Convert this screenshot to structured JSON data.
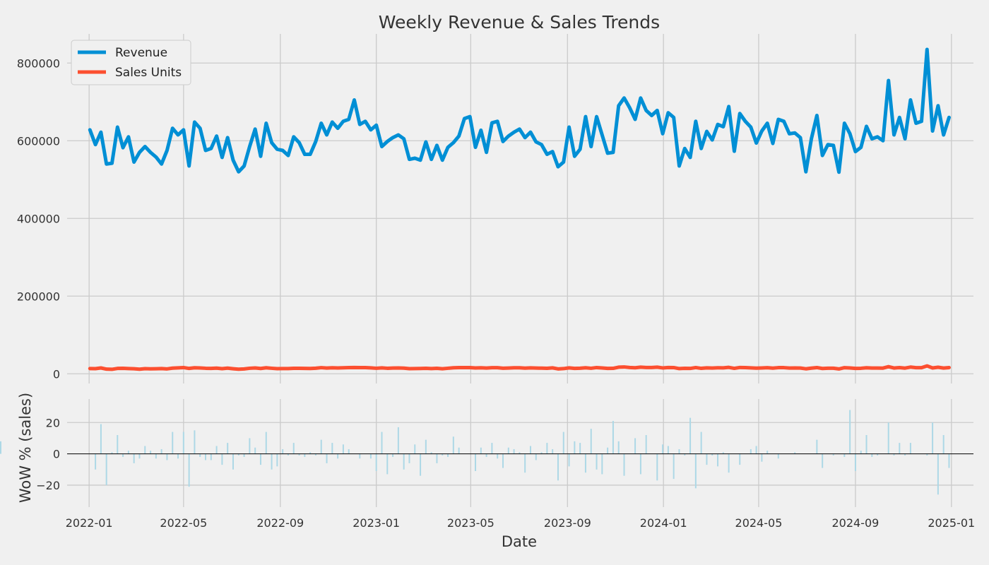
{
  "chart_data": [
    {
      "type": "line",
      "title": "Weekly Revenue & Sales Trends",
      "xlabel": "",
      "ylabel": "",
      "x_range": [
        "2021-12-04",
        "2025-01-29"
      ],
      "ylim": [
        -25000,
        875000
      ],
      "x_ticks": [
        "2022-01",
        "2022-05",
        "2022-09",
        "2023-01",
        "2023-05",
        "2023-09",
        "2024-01",
        "2024-05",
        "2024-09",
        "2025-01"
      ],
      "y_ticks": [
        0,
        200000,
        400000,
        600000,
        800000
      ],
      "grid": true,
      "legend_position": "top-left",
      "x": [
        "2022-01-02",
        "2022-01-09",
        "2022-01-16",
        "2022-01-23",
        "2022-01-30",
        "2022-02-06",
        "2022-02-13",
        "2022-02-20",
        "2022-02-27",
        "2022-03-06",
        "2022-03-13",
        "2022-03-20",
        "2022-03-27",
        "2022-04-03",
        "2022-04-10",
        "2022-04-17",
        "2022-04-24",
        "2022-05-01",
        "2022-05-08",
        "2022-05-15",
        "2022-05-22",
        "2022-05-29",
        "2022-06-05",
        "2022-06-12",
        "2022-06-19",
        "2022-06-26",
        "2022-07-03",
        "2022-07-10",
        "2022-07-17",
        "2022-07-24",
        "2022-07-31",
        "2022-08-07",
        "2022-08-14",
        "2022-08-21",
        "2022-08-28",
        "2022-09-04",
        "2022-09-11",
        "2022-09-18",
        "2022-09-25",
        "2022-10-02",
        "2022-10-09",
        "2022-10-16",
        "2022-10-23",
        "2022-10-30",
        "2022-11-06",
        "2022-11-13",
        "2022-11-20",
        "2022-11-27",
        "2022-12-04",
        "2022-12-11",
        "2022-12-18",
        "2022-12-25",
        "2023-01-01",
        "2023-01-08",
        "2023-01-15",
        "2023-01-22",
        "2023-01-29",
        "2023-02-05",
        "2023-02-12",
        "2023-02-19",
        "2023-02-26",
        "2023-03-05",
        "2023-03-12",
        "2023-03-19",
        "2023-03-26",
        "2023-04-02",
        "2023-04-09",
        "2023-04-16",
        "2023-04-23",
        "2023-04-30",
        "2023-05-07",
        "2023-05-14",
        "2023-05-21",
        "2023-05-28",
        "2023-06-04",
        "2023-06-11",
        "2023-06-18",
        "2023-06-25",
        "2023-07-02",
        "2023-07-09",
        "2023-07-16",
        "2023-07-23",
        "2023-07-30",
        "2023-08-06",
        "2023-08-13",
        "2023-08-20",
        "2023-08-27",
        "2023-09-03",
        "2023-09-10",
        "2023-09-17",
        "2023-09-24",
        "2023-10-01",
        "2023-10-08",
        "2023-10-15",
        "2023-10-22",
        "2023-10-29",
        "2023-11-05",
        "2023-11-12",
        "2023-11-19",
        "2023-11-26",
        "2023-12-03",
        "2023-12-10",
        "2023-12-17",
        "2023-12-24",
        "2023-12-31",
        "2024-01-07",
        "2024-01-14",
        "2024-01-21",
        "2024-01-28",
        "2024-02-04",
        "2024-02-11",
        "2024-02-18",
        "2024-02-25",
        "2024-03-03",
        "2024-03-10",
        "2024-03-17",
        "2024-03-24",
        "2024-03-31",
        "2024-04-07",
        "2024-04-14",
        "2024-04-21",
        "2024-04-28",
        "2024-05-05",
        "2024-05-12",
        "2024-05-19",
        "2024-05-26",
        "2024-06-02",
        "2024-06-09",
        "2024-06-16",
        "2024-06-23",
        "2024-06-30",
        "2024-07-07",
        "2024-07-14",
        "2024-07-21",
        "2024-07-28",
        "2024-08-04",
        "2024-08-11",
        "2024-08-18",
        "2024-08-25",
        "2024-09-01",
        "2024-09-08",
        "2024-09-15",
        "2024-09-22",
        "2024-09-29",
        "2024-10-06",
        "2024-10-13",
        "2024-10-20",
        "2024-10-27",
        "2024-11-03",
        "2024-11-10",
        "2024-11-17",
        "2024-11-24",
        "2024-12-01",
        "2024-12-08",
        "2024-12-15",
        "2024-12-22",
        "2024-12-29"
      ],
      "series": [
        {
          "name": "Revenue",
          "color": "#008fd5",
          "values": [
            628000,
            590000,
            622000,
            540000,
            542000,
            635000,
            582000,
            610000,
            545000,
            570000,
            585000,
            570000,
            558000,
            540000,
            575000,
            632000,
            615000,
            628000,
            535000,
            648000,
            632000,
            575000,
            580000,
            612000,
            557000,
            608000,
            550000,
            520000,
            535000,
            585000,
            630000,
            560000,
            645000,
            595000,
            578000,
            575000,
            562000,
            610000,
            595000,
            565000,
            565000,
            598000,
            645000,
            615000,
            648000,
            632000,
            650000,
            655000,
            705000,
            642000,
            650000,
            628000,
            640000,
            585000,
            598000,
            608000,
            615000,
            605000,
            552000,
            555000,
            550000,
            597000,
            552000,
            588000,
            550000,
            583000,
            595000,
            612000,
            657000,
            662000,
            583000,
            627000,
            570000,
            646000,
            650000,
            598000,
            612000,
            622000,
            630000,
            608000,
            622000,
            597000,
            590000,
            565000,
            572000,
            533000,
            545000,
            635000,
            560000,
            578000,
            662000,
            585000,
            662000,
            615000,
            568000,
            570000,
            690000,
            710000,
            685000,
            655000,
            710000,
            678000,
            665000,
            678000,
            618000,
            672000,
            660000,
            535000,
            580000,
            557000,
            650000,
            580000,
            624000,
            602000,
            642000,
            636000,
            688000,
            573000,
            670000,
            650000,
            635000,
            594000,
            625000,
            645000,
            593000,
            655000,
            650000,
            618000,
            620000,
            608000,
            520000,
            605000,
            665000,
            562000,
            590000,
            588000,
            519000,
            645000,
            618000,
            572000,
            583000,
            637000,
            605000,
            610000,
            600000,
            755000,
            615000,
            660000,
            605000,
            705000,
            645000,
            650000,
            835000,
            625000,
            690000,
            615000,
            660000
          ]
        },
        {
          "name": "Sales Units",
          "color": "#fc4f30",
          "values": [
            13500,
            13200,
            15000,
            12000,
            11500,
            13800,
            14000,
            13500,
            13000,
            11800,
            13200,
            12800,
            13000,
            13400,
            12600,
            14500,
            15200,
            16000,
            13800,
            15500,
            15000,
            14200,
            13800,
            14600,
            13200,
            14500,
            13000,
            11800,
            12500,
            14200,
            15000,
            13600,
            15500,
            14200,
            13200,
            13500,
            13300,
            14000,
            14200,
            13800,
            13600,
            14400,
            15800,
            14700,
            15500,
            15000,
            15500,
            16000,
            16200,
            16000,
            15800,
            15200,
            14200,
            15300,
            14200,
            14800,
            15000,
            14500,
            13200,
            13400,
            13600,
            14000,
            13300,
            14000,
            13000,
            14200,
            15500,
            15800,
            15800,
            16000,
            15000,
            15500,
            14800,
            15600,
            15600,
            14400,
            14800,
            15400,
            15500,
            14600,
            15200,
            14700,
            14500,
            14000,
            15200,
            12600,
            13300,
            15300,
            13800,
            14300,
            15400,
            14200,
            16000,
            15000,
            13800,
            14000,
            17000,
            17600,
            16200,
            15500,
            17000,
            16200,
            16200,
            17000,
            15100,
            16200,
            16000,
            13300,
            14000,
            13800,
            16000,
            14000,
            15200,
            14700,
            15500,
            15200,
            16500,
            14000,
            16200,
            15800,
            15300,
            14500,
            15100,
            15600,
            14500,
            15800,
            15800,
            14800,
            15000,
            14800,
            12800,
            14600,
            16000,
            13600,
            14400,
            14300,
            12500,
            15700,
            15000,
            13900,
            14200,
            15500,
            14700,
            14800,
            14600,
            18300,
            14800,
            16000,
            14600,
            17200,
            15600,
            15700,
            20300,
            15000,
            16800,
            14800,
            16000
          ]
        }
      ]
    },
    {
      "type": "bar",
      "xlabel": "Date",
      "ylabel": "WoW % (sales)",
      "ylim": [
        -34,
        35
      ],
      "y_ticks": [
        -20,
        0,
        20
      ],
      "bar_color": "#add8e6",
      "x": "shared",
      "values": [
        0,
        -10,
        19,
        -20,
        1,
        12,
        -2,
        2,
        -6,
        -3,
        5,
        2,
        -3,
        3,
        -4,
        14,
        -3,
        14,
        -21,
        15,
        -2,
        -4,
        -4,
        5,
        -7,
        7,
        -10,
        -1,
        -2,
        10,
        4,
        -7,
        14,
        -10,
        -8,
        3,
        -1,
        7,
        -1,
        -2,
        1,
        -1,
        9,
        -6,
        7,
        -3,
        6,
        3,
        0,
        -3,
        0,
        -3,
        -11,
        14,
        -13,
        -2,
        17,
        -10,
        -6,
        6,
        -14,
        9,
        1,
        -6,
        -1,
        -2,
        11,
        4,
        0,
        0,
        -11,
        4,
        -2,
        7,
        -3,
        -9,
        4,
        3,
        1,
        -12,
        5,
        -4,
        1,
        7,
        3,
        -17,
        14,
        -8,
        8,
        7,
        -12,
        16,
        -10,
        -13,
        4,
        21,
        8,
        -14,
        0,
        10,
        -13,
        12,
        0,
        -17,
        6,
        5,
        -16,
        3,
        -1,
        23,
        -22,
        14,
        -7,
        -1,
        -8,
        1,
        -12,
        0,
        -7,
        0,
        3,
        5,
        -5,
        2,
        0,
        -3,
        0,
        0,
        1,
        0,
        0,
        0,
        9,
        -9,
        0,
        -1,
        0,
        -2,
        28,
        -11,
        2,
        12,
        -2,
        -1,
        0,
        20,
        -1,
        7,
        -1,
        7,
        0,
        0,
        -1,
        20,
        -26,
        12,
        -9,
        8
      ]
    }
  ]
}
